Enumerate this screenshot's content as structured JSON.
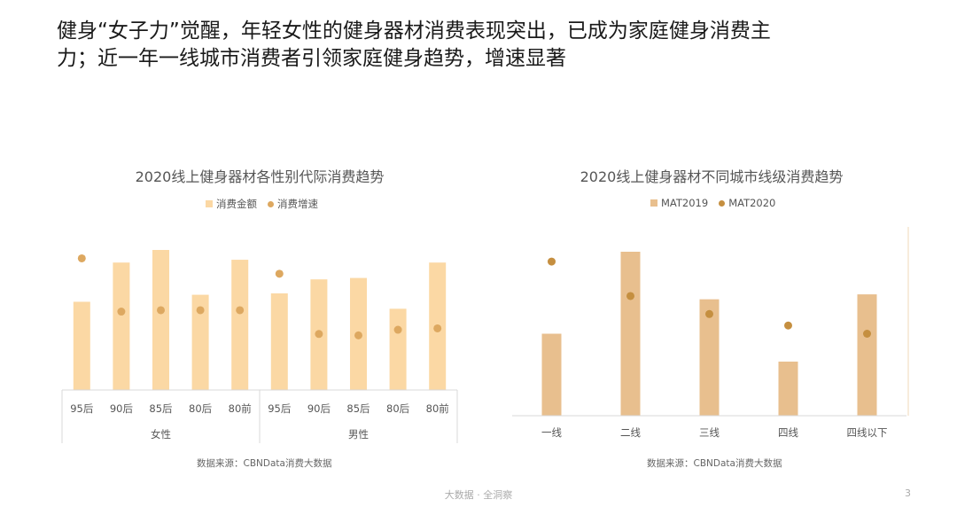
{
  "headline": {
    "line1": "健身“女子力”觉醒，年轻女性的健身器材消费表现突出，已成为家庭健身消费主",
    "line2": "力；近一年一线城市消费者引领家庭健身趋势，增速显著"
  },
  "chart_data": [
    {
      "type": "bar",
      "title": "2020线上健身器材各性别代际消费趋势",
      "legend": [
        "消费金额",
        "消费增速"
      ],
      "groups": [
        {
          "name": "女性",
          "categories": [
            "95后",
            "90后",
            "85后",
            "80后",
            "80前"
          ]
        },
        {
          "name": "男性",
          "categories": [
            "95后",
            "90后",
            "85后",
            "80后",
            "80前"
          ]
        }
      ],
      "categories": [
        "95后",
        "90后",
        "85后",
        "80后",
        "80前",
        "95后",
        "90后",
        "85后",
        "80后",
        "80前"
      ],
      "series": [
        {
          "name": "消费金额",
          "kind": "bar",
          "values": [
            0.63,
            0.91,
            1.0,
            0.68,
            0.93,
            0.69,
            0.79,
            0.8,
            0.58,
            0.91
          ]
        },
        {
          "name": "消费增速",
          "kind": "dot",
          "values": [
            0.94,
            0.56,
            0.57,
            0.57,
            0.57,
            0.83,
            0.4,
            0.39,
            0.43,
            0.44
          ]
        }
      ],
      "yaxis_shown": false,
      "colors": {
        "bar": "#fbd8a4",
        "dot": "#dda860"
      },
      "source": "数据来源：CBNData消费大数据"
    },
    {
      "type": "bar",
      "title": "2020线上健身器材不同城市线级消费趋势",
      "legend": [
        "MAT2019",
        "MAT2020"
      ],
      "categories": [
        "一线",
        "二线",
        "三线",
        "四线",
        "四线以下"
      ],
      "series": [
        {
          "name": "MAT2019",
          "kind": "bar",
          "values": [
            0.5,
            1.0,
            0.71,
            0.33,
            0.74
          ]
        },
        {
          "name": "MAT2020",
          "kind": "dot",
          "values": [
            0.94,
            0.73,
            0.62,
            0.55,
            0.5
          ]
        }
      ],
      "yaxis_shown": false,
      "colors": {
        "bar": "#e8bf8e",
        "dot": "#c58f40"
      },
      "source": "数据来源：CBNData消费大数据"
    }
  ],
  "footer": {
    "text": "大数据 · 全洞察",
    "page": "3"
  }
}
